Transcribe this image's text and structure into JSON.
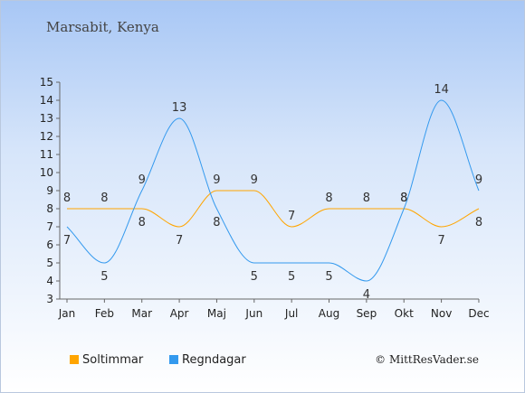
{
  "title": "Marsabit, Kenya",
  "credit": "© MittResVader.se",
  "colors": {
    "sun": "#ffa500",
    "rain": "#3399ee",
    "axis": "#666666"
  },
  "chart_data": {
    "type": "line",
    "categories": [
      "Jan",
      "Feb",
      "Mar",
      "Apr",
      "Maj",
      "Jun",
      "Jul",
      "Aug",
      "Sep",
      "Okt",
      "Nov",
      "Dec"
    ],
    "ylim": [
      3,
      15
    ],
    "yticks": [
      3,
      4,
      5,
      6,
      7,
      8,
      9,
      10,
      11,
      12,
      13,
      14,
      15
    ],
    "grid": false,
    "legend_position": "bottom-left",
    "series": [
      {
        "name": "Soltimmar",
        "color": "#ffa500",
        "values": [
          8,
          8,
          8,
          7,
          9,
          9,
          7,
          8,
          8,
          8,
          7,
          8
        ]
      },
      {
        "name": "Regndagar",
        "color": "#3399ee",
        "values": [
          7,
          5,
          9,
          13,
          8,
          5,
          5,
          5,
          4,
          8,
          14,
          9
        ]
      }
    ]
  }
}
